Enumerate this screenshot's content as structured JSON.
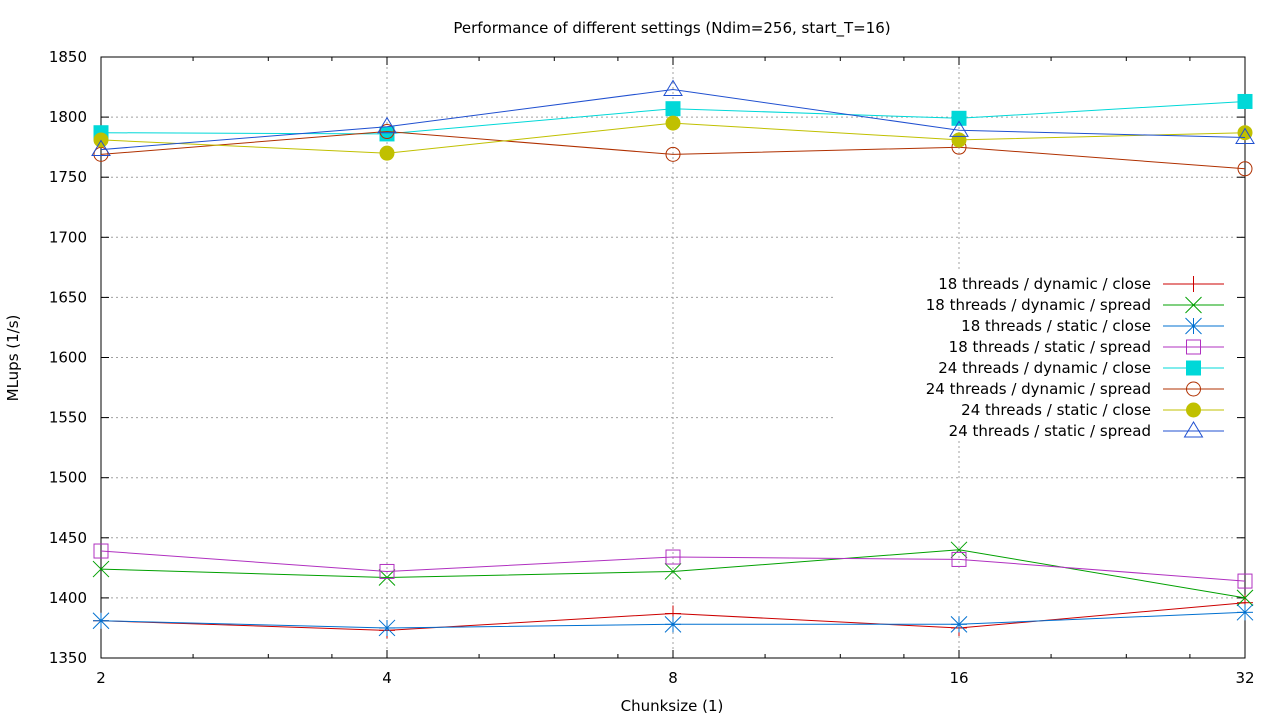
{
  "chart_data": {
    "type": "line",
    "title": "Performance of different settings (Ndim=256, start_T=16)",
    "xlabel": "Chunksize (1)",
    "ylabel": "MLups (1/s)",
    "x_scale": "log2",
    "x": [
      2,
      4,
      8,
      16,
      32
    ],
    "x_ticks": [
      "2",
      "4",
      "8",
      "16",
      "32"
    ],
    "ylim": [
      1350,
      1850
    ],
    "y_ticks": [
      "1350",
      "1400",
      "1450",
      "1500",
      "1550",
      "1600",
      "1650",
      "1700",
      "1750",
      "1800",
      "1850"
    ],
    "grid": true,
    "legend_position": "right",
    "series": [
      {
        "name": "18 threads / dynamic / close",
        "color": "#cc0000",
        "marker": "plus",
        "values": [
          1381,
          1373,
          1387,
          1375,
          1396
        ]
      },
      {
        "name": "18 threads / dynamic / spread",
        "color": "#00a000",
        "marker": "cross",
        "values": [
          1424,
          1417,
          1422,
          1440,
          1400
        ]
      },
      {
        "name": "18 threads / static / close",
        "color": "#0070d0",
        "marker": "star",
        "values": [
          1381,
          1375,
          1378,
          1378,
          1388
        ]
      },
      {
        "name": "18 threads / static / spread",
        "color": "#b030c0",
        "marker": "square-open",
        "values": [
          1439,
          1422,
          1434,
          1432,
          1414
        ]
      },
      {
        "name": "24 threads / dynamic / close",
        "color": "#00d8d8",
        "marker": "square-filled",
        "values": [
          1787,
          1786,
          1807,
          1799,
          1813
        ]
      },
      {
        "name": "24 threads / dynamic / spread",
        "color": "#b03000",
        "marker": "circle-open",
        "values": [
          1769,
          1788,
          1769,
          1775,
          1757
        ]
      },
      {
        "name": "24 threads / static / close",
        "color": "#c0c000",
        "marker": "circle-filled",
        "values": [
          1781,
          1770,
          1795,
          1781,
          1787
        ]
      },
      {
        "name": "24 threads / static / spread",
        "color": "#2050d0",
        "marker": "triangle-open",
        "values": [
          1773,
          1792,
          1823,
          1789,
          1783
        ]
      }
    ]
  }
}
